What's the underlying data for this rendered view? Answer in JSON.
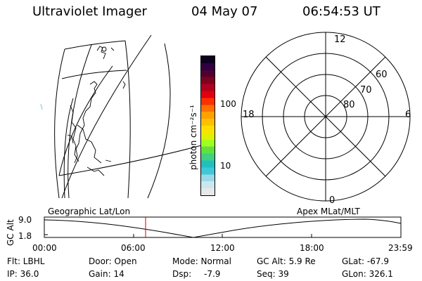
{
  "header": {
    "title": "Ultraviolet Imager",
    "date": "04 May 07",
    "time": "06:54:53 UT"
  },
  "map": {
    "label": "Geographic Lat/Lon"
  },
  "colorbar": {
    "unit_label": "photon cm⁻²s⁻¹",
    "ticks": [
      "100",
      "10"
    ],
    "colors": [
      "#e8e8e8",
      "#c8e8f0",
      "#9ad8e8",
      "#40c8d8",
      "#20c0c0",
      "#40d080",
      "#60e040",
      "#a0ff20",
      "#e0f000",
      "#ffe000",
      "#ffc000",
      "#ffa000",
      "#ff7000",
      "#ff3000",
      "#e00010",
      "#b00020",
      "#800020",
      "#500030",
      "#300040",
      "#100020"
    ]
  },
  "polar": {
    "label": "Apex MLat/MLT",
    "mlt_labels": {
      "top": "12",
      "bottom": "0",
      "left": "18",
      "right": "6"
    },
    "lat_labels": [
      "60",
      "70",
      "80"
    ]
  },
  "altitude_plot": {
    "y_axis_label": "GC Alt",
    "y_ticks": [
      "9.0",
      "1.8"
    ],
    "x_ticks": [
      "00:00",
      "06:00",
      "12:00",
      "18:00",
      "23:59"
    ],
    "marker_color": "#cc0000"
  },
  "info": {
    "filter": "Flt: LBHL",
    "ip": "IP: 36.0",
    "door": "Door: Open",
    "gain": "Gain: 14",
    "mode": "Mode: Normal",
    "dsp_label": "Dsp:",
    "dsp_value": "-7.9",
    "gc_alt": "GC Alt: 5.9 Re",
    "seq": "Seq: 39",
    "glat": "GLat: -67.9",
    "glon": "GLon: 326.1"
  }
}
